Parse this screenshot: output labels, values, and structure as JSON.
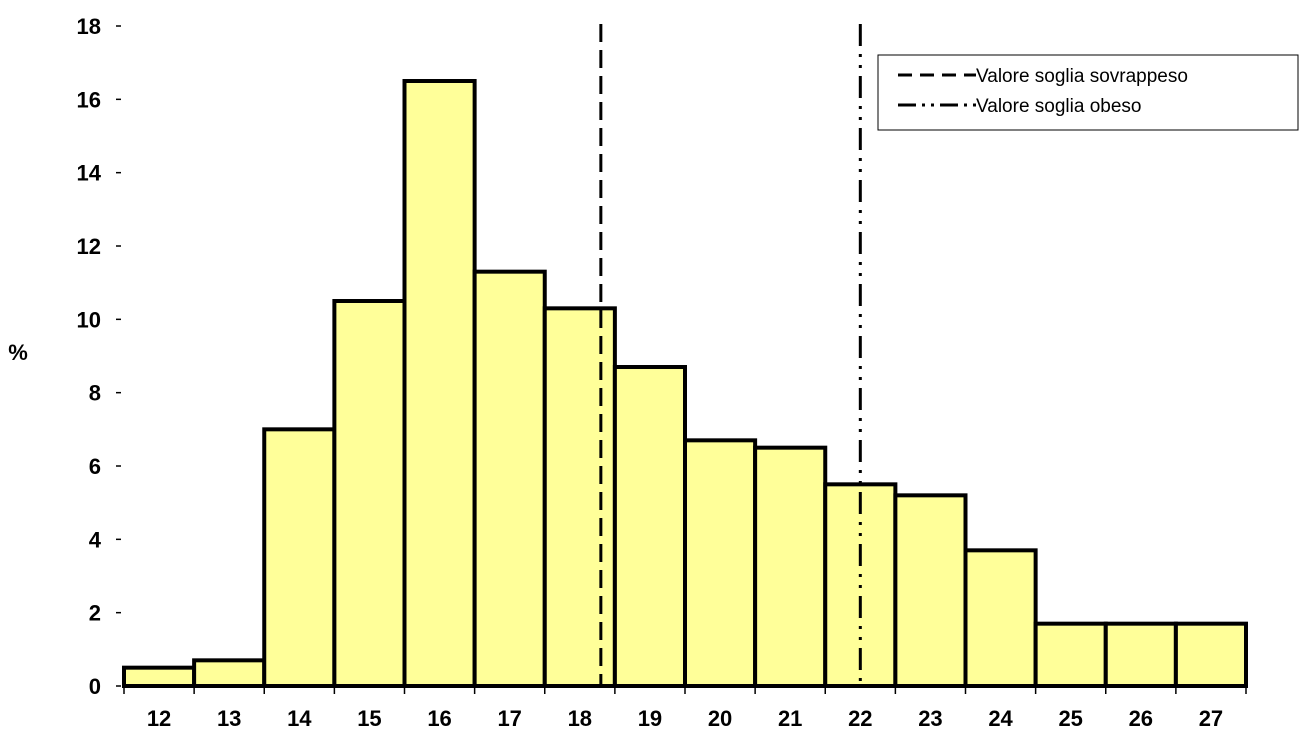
{
  "chart_data": {
    "type": "bar",
    "categories": [
      "12",
      "13",
      "14",
      "15",
      "16",
      "17",
      "18",
      "19",
      "20",
      "21",
      "22",
      "23",
      "24",
      "25",
      "26",
      "27"
    ],
    "values": [
      0.5,
      0.7,
      7.0,
      10.5,
      16.5,
      11.3,
      10.3,
      8.7,
      6.7,
      6.5,
      5.5,
      5.2,
      3.7,
      1.7,
      1.7,
      1.7
    ],
    "title": "",
    "xlabel": "",
    "ylabel": "%",
    "ylim": [
      0,
      18
    ],
    "yticks": [
      "0",
      "2",
      "4",
      "6",
      "8",
      "10",
      "12",
      "14",
      "16",
      "18"
    ],
    "bar_color": "#ffff99",
    "grid": false,
    "reference_lines": [
      {
        "name": "Valore soglia sovrappeso",
        "x": 18.3,
        "style": "dashed"
      },
      {
        "name": "Valore soglia obeso",
        "x": 22.0,
        "style": "dash-dot-dot"
      }
    ],
    "legend": {
      "position": "top-right",
      "entries": [
        "Valore soglia sovrappeso",
        "Valore soglia obeso"
      ]
    }
  }
}
